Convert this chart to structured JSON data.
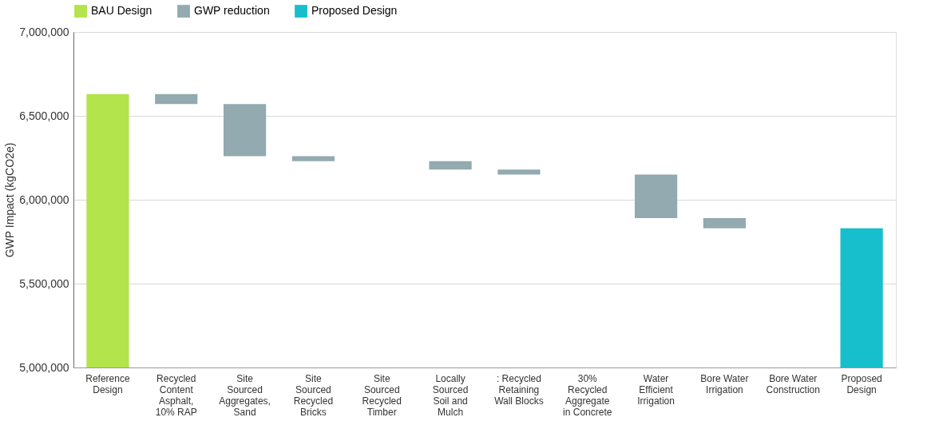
{
  "chart_data": {
    "type": "bar",
    "ylabel": "GWP Impact (kgCO2e)",
    "categories": [
      "Reference Design",
      "Recycled Content Asphalt, 10% RAP",
      "Site Sourced Aggregates, Sand",
      "Site Sourced Recycled Bricks",
      "Site Sourced Recycled Timber",
      "Locally Sourced Soil and Mulch",
      ": Recycled Retaining Wall Blocks",
      "30% Recycled Aggregate in Concrete",
      "Water Efficient Irrigation",
      "Bore Water Irrigation",
      "Bore Water Construction",
      "Proposed Design"
    ],
    "series": [
      {
        "name": "BAU Design",
        "color": "#b3e44b",
        "base": [
          5000000,
          null,
          null,
          null,
          null,
          null,
          null,
          null,
          null,
          null,
          null,
          null
        ],
        "values": [
          1630000,
          null,
          null,
          null,
          null,
          null,
          null,
          null,
          null,
          null,
          null,
          null
        ]
      },
      {
        "name": "GWP reduction",
        "color": "#92aab0",
        "base": [
          null,
          6630000,
          6570000,
          6260000,
          null,
          6230000,
          6180000,
          null,
          6150000,
          5890000,
          null,
          null
        ],
        "values": [
          null,
          -60000,
          -310000,
          -30000,
          null,
          -50000,
          -30000,
          null,
          -260000,
          -60000,
          null,
          null
        ]
      },
      {
        "name": "Proposed Design",
        "color": "#17bfcc",
        "base": [
          null,
          null,
          null,
          null,
          null,
          null,
          null,
          null,
          null,
          null,
          null,
          5000000
        ],
        "values": [
          null,
          null,
          null,
          null,
          null,
          null,
          null,
          null,
          null,
          null,
          null,
          830000
        ]
      }
    ],
    "ylim": [
      5000000,
      7000000
    ],
    "yticks": [
      {
        "value": 5000000,
        "label": "5,000,000"
      },
      {
        "value": 5500000,
        "label": "5,500,000"
      },
      {
        "value": 6000000,
        "label": "6,000,000"
      },
      {
        "value": 6500000,
        "label": "6,500,000"
      },
      {
        "value": 7000000,
        "label": "7,000,000"
      }
    ],
    "grid": "y",
    "legend": "top"
  }
}
